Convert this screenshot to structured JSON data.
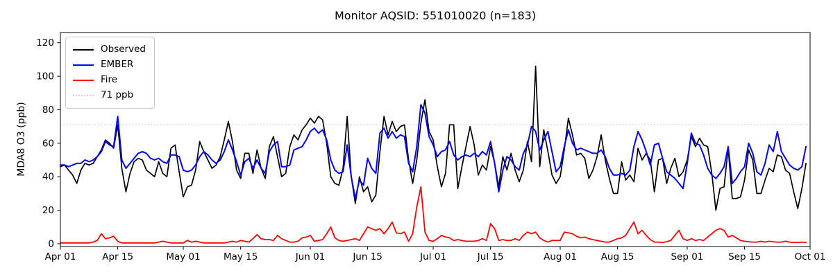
{
  "chart_data": {
    "type": "line",
    "title": "Monitor AQSID: 551010020 (n=183)",
    "ylabel": "MDA8 O3 (ppb)",
    "xlabel": "",
    "n_points": 183,
    "x_range": [
      "Apr 01",
      "Oct 01"
    ],
    "x_tick_labels": [
      "Apr 01",
      "Apr 15",
      "May 01",
      "May 15",
      "Jun 01",
      "Jun 15",
      "Jul 01",
      "Jul 15",
      "Aug 01",
      "Aug 15",
      "Sep 01",
      "Sep 15",
      "Oct 01"
    ],
    "x_tick_days": [
      0,
      14,
      30,
      44,
      61,
      75,
      91,
      105,
      122,
      136,
      153,
      167,
      183
    ],
    "y_ticks": [
      0,
      20,
      40,
      60,
      80,
      100,
      120
    ],
    "ylim": [
      -2,
      126
    ],
    "grid": false,
    "legend_position": "upper-left",
    "threshold": {
      "label": "71 ppb",
      "value": 71,
      "color": "#d3d3d3",
      "style": "dotted"
    },
    "series": [
      {
        "name": "Observed",
        "color": "#000000",
        "width": 1.7,
        "values": [
          46,
          47,
          44,
          41,
          36,
          44,
          48,
          47,
          48,
          52,
          56,
          62,
          60,
          57,
          71,
          45,
          31,
          42,
          49,
          51,
          50,
          44,
          42,
          40,
          49,
          42,
          40,
          57,
          59,
          43,
          28,
          34,
          35,
          44,
          61,
          55,
          50,
          45,
          47,
          52,
          62,
          73,
          61,
          44,
          39,
          54,
          54,
          42,
          56,
          45,
          39,
          58,
          64,
          52,
          40,
          42,
          58,
          65,
          62,
          68,
          71,
          75,
          72,
          76,
          74,
          60,
          40,
          36,
          35,
          45,
          76,
          40,
          24,
          40,
          31,
          34,
          25,
          29,
          55,
          76,
          65,
          73,
          67,
          70,
          71,
          50,
          36,
          50,
          72,
          86,
          67,
          62,
          46,
          34,
          42,
          71,
          71,
          33,
          46,
          58,
          70,
          59,
          41,
          47,
          44,
          58,
          48,
          34,
          52,
          44,
          54,
          44,
          37,
          44,
          61,
          49,
          106,
          46,
          68,
          55,
          41,
          36,
          40,
          56,
          75,
          65,
          53,
          54,
          51,
          39,
          44,
          52,
          65,
          50,
          39,
          30,
          30,
          49,
          38,
          41,
          37,
          57,
          50,
          54,
          50,
          31,
          50,
          51,
          36,
          45,
          51,
          40,
          43,
          50,
          64,
          58,
          63,
          59,
          58,
          42,
          20,
          33,
          34,
          57,
          27,
          27,
          28,
          38,
          56,
          50,
          30,
          30,
          38,
          45,
          43,
          53,
          52,
          44,
          42,
          31,
          21,
          33,
          48
        ]
      },
      {
        "name": "EMBER",
        "color": "#0000ff",
        "width": 2.0,
        "values": [
          47,
          47,
          46,
          47,
          48,
          48,
          50,
          49,
          50,
          52,
          55,
          61,
          59,
          58,
          76,
          50,
          45,
          48,
          51,
          54,
          55,
          54,
          51,
          50,
          51,
          49,
          48,
          53,
          53,
          52,
          44,
          43,
          44,
          47,
          52,
          55,
          53,
          50,
          48,
          50,
          55,
          62,
          56,
          49,
          41,
          49,
          51,
          45,
          50,
          45,
          42,
          55,
          59,
          61,
          46,
          46,
          47,
          56,
          57,
          58,
          62,
          67,
          69,
          66,
          68,
          62,
          50,
          44,
          42,
          43,
          59,
          40,
          27,
          38,
          35,
          51,
          45,
          42,
          66,
          69,
          63,
          67,
          63,
          65,
          64,
          48,
          43,
          58,
          83,
          78,
          64,
          59,
          52,
          55,
          56,
          61,
          53,
          50,
          52,
          53,
          52,
          54,
          52,
          55,
          53,
          61,
          48,
          31,
          44,
          52,
          50,
          46,
          44,
          54,
          59,
          70,
          67,
          56,
          62,
          67,
          55,
          43,
          46,
          58,
          68,
          60,
          56,
          57,
          56,
          55,
          54,
          54,
          56,
          52,
          45,
          41,
          41,
          42,
          41,
          44,
          58,
          67,
          62,
          55,
          47,
          59,
          60,
          51,
          43,
          41,
          39,
          36,
          33,
          48,
          66,
          60,
          59,
          53,
          45,
          41,
          39,
          42,
          46,
          58,
          36,
          39,
          43,
          46,
          60,
          54,
          43,
          41,
          48,
          59,
          55,
          67,
          55,
          51,
          47,
          45,
          44,
          46,
          58
        ]
      },
      {
        "name": "Fire",
        "color": "#ff0000",
        "width": 1.8,
        "values": [
          0.5,
          0.5,
          0.5,
          0.5,
          0.5,
          0.5,
          0.5,
          0.5,
          1,
          2,
          6,
          3,
          3.5,
          4.5,
          1.5,
          0.5,
          0.5,
          0.5,
          0.5,
          0.5,
          0.5,
          0.5,
          0.5,
          0.5,
          1,
          1.5,
          1,
          0.5,
          0.5,
          0.5,
          0.5,
          2,
          1,
          1.5,
          1,
          0.5,
          0.5,
          0.5,
          0.5,
          0.5,
          0.5,
          1,
          1.5,
          1,
          2,
          1.5,
          1,
          3,
          5.5,
          3,
          2.5,
          2.5,
          2,
          5,
          3,
          2,
          1,
          1,
          1.5,
          3.5,
          4,
          5,
          1.5,
          2,
          2.5,
          6,
          10,
          3.5,
          2,
          1.5,
          2,
          2.5,
          3,
          2,
          6,
          10,
          9,
          8,
          9,
          6,
          9,
          13,
          6.5,
          6,
          7,
          1.5,
          6,
          22,
          34,
          7,
          2,
          1.5,
          3,
          5,
          4,
          3.5,
          2,
          2.5,
          2,
          1.5,
          1.5,
          1.5,
          2,
          3,
          2,
          12,
          9,
          2,
          2.5,
          2,
          2,
          3,
          2,
          5,
          7,
          6,
          7,
          3.5,
          2,
          1,
          2,
          2,
          2,
          7,
          6.5,
          6,
          4.5,
          3.5,
          4,
          3,
          2.5,
          2,
          1.5,
          1,
          1,
          2,
          3,
          3.5,
          5,
          9,
          13,
          6,
          8,
          5,
          2.5,
          1,
          1,
          0.8,
          1.2,
          2,
          5,
          8,
          3,
          2,
          3,
          2,
          2.5,
          2,
          4,
          6,
          8,
          9,
          8,
          4,
          5,
          3.5,
          2,
          1.5,
          1.2,
          1,
          1,
          1.5,
          1,
          1.5,
          1.2,
          1,
          1,
          1.5,
          1,
          0.8,
          0.8,
          1,
          0.8
        ]
      }
    ],
    "axis_color": "#000000",
    "background_color": "#ffffff"
  }
}
